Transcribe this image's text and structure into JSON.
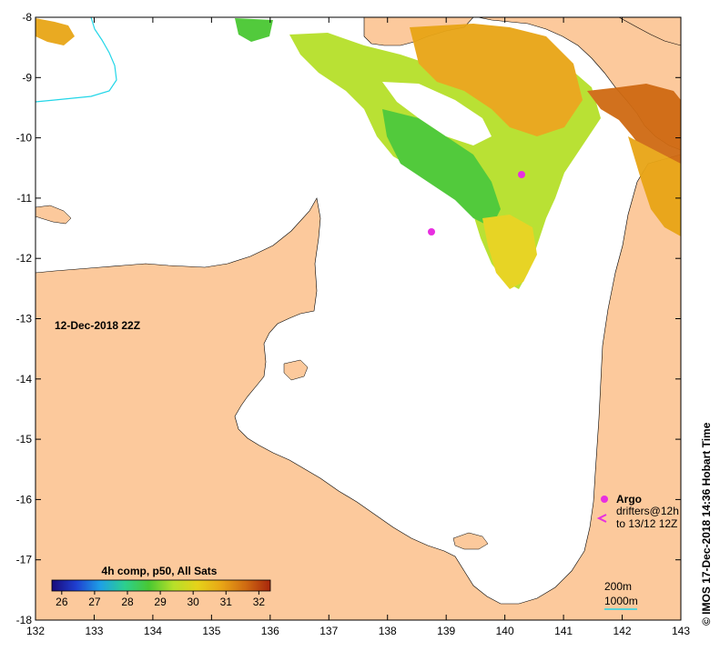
{
  "map": {
    "date_label": "12-Dec-2018 22Z",
    "credit": "© IMOS 17-Dec-2018 14:36 Hobart Time",
    "land_color": "#fcc99c",
    "water_color": "#ffffff",
    "longitude": {
      "min": 132,
      "max": 143,
      "ticks": [
        "132",
        "133",
        "134",
        "135",
        "136",
        "137",
        "138",
        "139",
        "140",
        "141",
        "142",
        "143"
      ]
    },
    "latitude": {
      "min": -18,
      "max": -8,
      "ticks": [
        "-8",
        "-9",
        "-10",
        "-11",
        "-12",
        "-13",
        "-14",
        "-15",
        "-16",
        "-17",
        "-18"
      ]
    }
  },
  "colorbar": {
    "title": "4h comp, p50, All Sats",
    "ticks": [
      "26",
      "27",
      "28",
      "29",
      "30",
      "31",
      "32"
    ],
    "colors": [
      "#1a0a7a",
      "#1f3fd0",
      "#1ea0e6",
      "#2ccf8f",
      "#49c832",
      "#b6e02a",
      "#e6d21a",
      "#e8a516",
      "#cf6a12",
      "#a8260c"
    ]
  },
  "legend": {
    "argo_label": "Argo",
    "argo_color": "#e82ee0",
    "drifters_line1": "drifters@12h",
    "drifters_line2": "to 13/12 12Z",
    "drifter_color": "#e82ee0",
    "contour_200m": "200m",
    "contour_1000m": "1000m",
    "contour_color": "#22d6e8"
  }
}
